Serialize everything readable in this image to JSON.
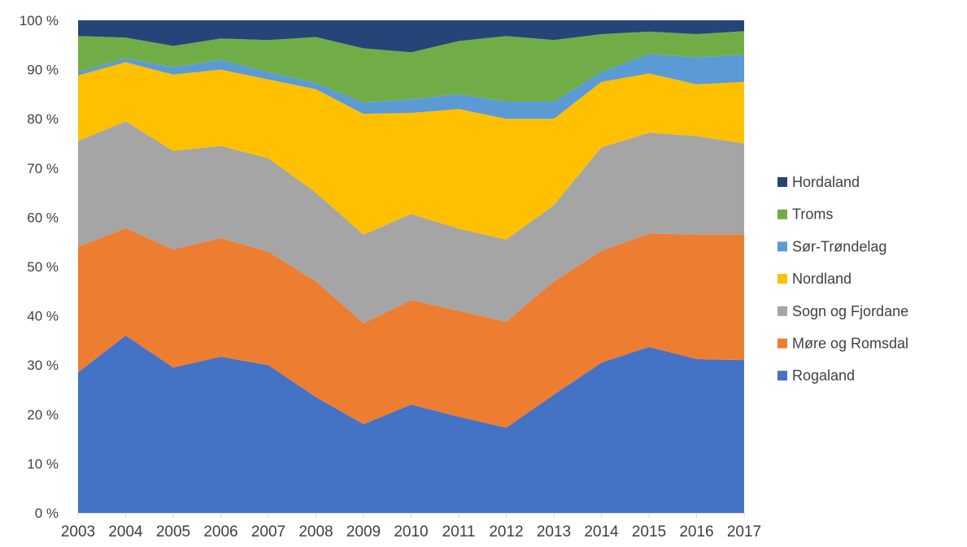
{
  "chart_data": {
    "type": "area",
    "stacked": true,
    "normalized": true,
    "x": [
      "2003",
      "2004",
      "2005",
      "2006",
      "2007",
      "2008",
      "2009",
      "2010",
      "2011",
      "2012",
      "2013",
      "2014",
      "2015",
      "2016",
      "2017"
    ],
    "y_ticks": [
      "0 %",
      "10 %",
      "20 %",
      "30 %",
      "40 %",
      "50 %",
      "60 %",
      "70 %",
      "80 %",
      "90 %",
      "100 %"
    ],
    "ylim": [
      0,
      100
    ],
    "grid": false,
    "legend_position": "right",
    "title": "",
    "xlabel": "",
    "ylabel": "",
    "series": [
      {
        "name": "Rogaland",
        "color": "#4472C4",
        "values": [
          28.5,
          36,
          29.5,
          31.7,
          30,
          23.5,
          18,
          22,
          19.5,
          17.3,
          24,
          30.5,
          33.7,
          31.2,
          31
        ]
      },
      {
        "name": "Møre og Romsdal",
        "color": "#ED7D31",
        "values": [
          25.5,
          21.8,
          24,
          24.1,
          23,
          23.5,
          20.5,
          21.2,
          21.5,
          21.5,
          23,
          22.7,
          23,
          25.3,
          25.5
        ]
      },
      {
        "name": "Sogn og Fjordane",
        "color": "#A5A5A5",
        "values": [
          21.5,
          21.7,
          20,
          18.7,
          19,
          18,
          18,
          17.5,
          16.7,
          16.7,
          15.5,
          21,
          20.5,
          20,
          18.5
        ]
      },
      {
        "name": "Nordland",
        "color": "#FFC000",
        "values": [
          13.3,
          12,
          15.5,
          15.5,
          16,
          21,
          24.5,
          20.5,
          24.3,
          24.5,
          17.5,
          13.3,
          12,
          10.5,
          12.5
        ]
      },
      {
        "name": "Sør-Trøndelag",
        "color": "#5B9BD5",
        "values": [
          0.7,
          0.8,
          1.5,
          2,
          1.5,
          1.3,
          2.3,
          2.8,
          3,
          3.5,
          3.5,
          2,
          4,
          5.5,
          5.5
        ]
      },
      {
        "name": "Troms",
        "color": "#70AD47",
        "values": [
          7.3,
          4.2,
          4.3,
          4.3,
          6.5,
          9.3,
          11,
          9.5,
          10.8,
          13.3,
          12.5,
          7.7,
          4.5,
          4.7,
          4.8
        ]
      },
      {
        "name": "Hordaland",
        "color": "#264478",
        "values": [
          3.2,
          3.5,
          5.2,
          3.7,
          4,
          3.4,
          5.7,
          6.5,
          4.2,
          3.2,
          4,
          2.8,
          2.3,
          2.8,
          2.2
        ]
      }
    ],
    "legend_order": [
      "Hordaland",
      "Troms",
      "Sør-Trøndelag",
      "Nordland",
      "Sogn og Fjordane",
      "Møre og Romsdal",
      "Rogaland"
    ]
  }
}
